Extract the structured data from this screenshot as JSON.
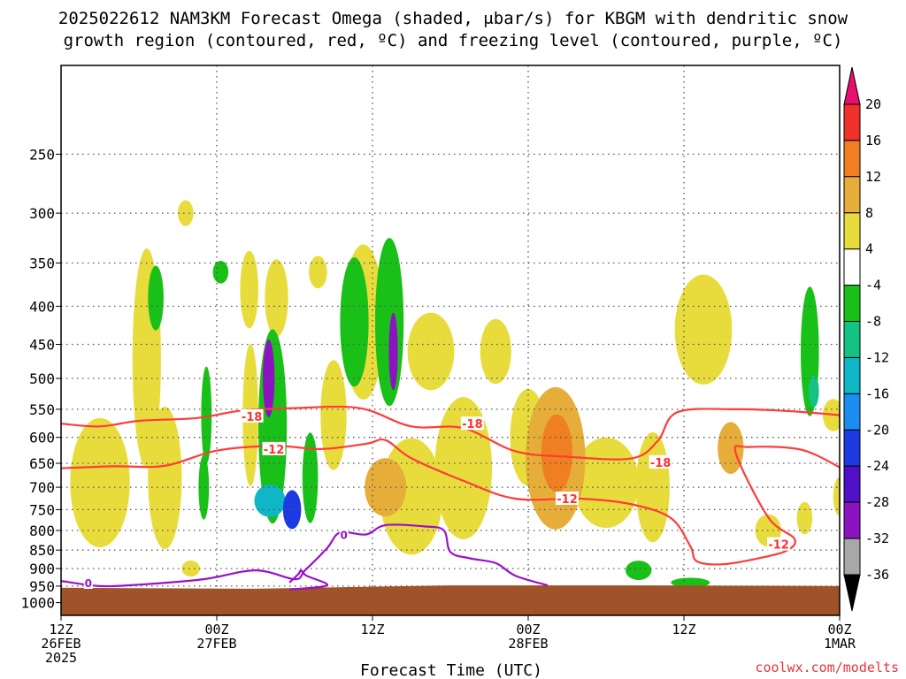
{
  "chart_data": {
    "type": "heatmap",
    "title_lines": [
      "2025022612 NAM3KM Forecast Omega (shaded, μbar/s) for KBGM with dendritic snow",
      "growth region (contoured, red, ºC) and freezing level (contoured, purple, ºC)"
    ],
    "xlabel": "Forecast Time (UTC)",
    "ylabel": "",
    "credit": "coolwx.com/modelts",
    "y_axis": {
      "scale": "log",
      "reversed": true,
      "ylim": [
        1040,
        190
      ],
      "ticks": [
        250,
        300,
        350,
        400,
        450,
        500,
        550,
        600,
        650,
        700,
        750,
        800,
        850,
        900,
        950,
        1000
      ]
    },
    "x_axis": {
      "xlim_hours": [
        0,
        60
      ],
      "ticks": [
        {
          "h": 0,
          "lines": [
            "12Z",
            "26FEB",
            "2025"
          ]
        },
        {
          "h": 12,
          "lines": [
            "00Z",
            "27FEB"
          ]
        },
        {
          "h": 24,
          "lines": [
            "12Z"
          ]
        },
        {
          "h": 36,
          "lines": [
            "00Z",
            "28FEB"
          ]
        },
        {
          "h": 48,
          "lines": [
            "12Z"
          ]
        },
        {
          "h": 60,
          "lines": [
            "00Z",
            "1MAR"
          ]
        }
      ],
      "grid": true
    },
    "colorbar": {
      "ticks": [
        20,
        16,
        12,
        8,
        4,
        -4,
        -8,
        -12,
        -16,
        -20,
        -24,
        -28,
        -32,
        -36
      ],
      "bins": [
        {
          "range": [
            16,
            20
          ],
          "color": "#f0302a"
        },
        {
          "range": [
            12,
            16
          ],
          "color": "#ef7f20"
        },
        {
          "range": [
            8,
            12
          ],
          "color": "#e6ae38"
        },
        {
          "range": [
            4,
            8
          ],
          "color": "#e8dc3c"
        },
        {
          "range": [
            -4,
            4
          ],
          "color": "#ffffff"
        },
        {
          "range": [
            -8,
            -4
          ],
          "color": "#18c018"
        },
        {
          "range": [
            -12,
            -8
          ],
          "color": "#14c283"
        },
        {
          "range": [
            -16,
            -12
          ],
          "color": "#0eb6c6"
        },
        {
          "range": [
            -20,
            -16
          ],
          "color": "#1c8ef2"
        },
        {
          "range": [
            -24,
            -20
          ],
          "color": "#1c3ae0"
        },
        {
          "range": [
            -28,
            -24
          ],
          "color": "#5010c8"
        },
        {
          "range": [
            -32,
            -28
          ],
          "color": "#8c12c2"
        },
        {
          "range": [
            -36,
            -32
          ],
          "color": "#a8a8a8"
        }
      ],
      "top_arrow_color": "#e8106c",
      "bottom_arrow_color": "#000000"
    },
    "ground_color": "#a05228",
    "omega_features": [
      {
        "t": 3.0,
        "p": 690,
        "dt": 2.3,
        "logw": 0.2,
        "v": 5
      },
      {
        "t": 6.6,
        "p": 470,
        "dt": 1.1,
        "logw": 0.34,
        "v": 5
      },
      {
        "t": 8.0,
        "p": 680,
        "dt": 1.3,
        "logw": 0.22,
        "v": 5
      },
      {
        "t": 7.3,
        "p": 390,
        "dt": 0.6,
        "logw": 0.1,
        "v": -7
      },
      {
        "t": 9.6,
        "p": 300,
        "dt": 0.6,
        "logw": 0.04,
        "v": 5
      },
      {
        "t": 10.0,
        "p": 900,
        "dt": 0.7,
        "logw": 0.025,
        "v": 5
      },
      {
        "t": 11.2,
        "p": 560,
        "dt": 0.4,
        "logw": 0.15,
        "v": -7
      },
      {
        "t": 11.0,
        "p": 700,
        "dt": 0.4,
        "logw": 0.1,
        "v": -7
      },
      {
        "t": 12.3,
        "p": 360,
        "dt": 0.6,
        "logw": 0.035,
        "v": -7
      },
      {
        "t": 14.5,
        "p": 380,
        "dt": 0.7,
        "logw": 0.12,
        "v": 5
      },
      {
        "t": 14.6,
        "p": 560,
        "dt": 0.6,
        "logw": 0.22,
        "v": 5
      },
      {
        "t": 16.6,
        "p": 390,
        "dt": 0.9,
        "logw": 0.12,
        "v": 5
      },
      {
        "t": 16.3,
        "p": 580,
        "dt": 1.1,
        "logw": 0.3,
        "v": -8
      },
      {
        "t": 16.0,
        "p": 500,
        "dt": 0.45,
        "logw": 0.12,
        "v": -30
      },
      {
        "t": 16.1,
        "p": 730,
        "dt": 1.2,
        "logw": 0.05,
        "v": -14
      },
      {
        "t": 17.8,
        "p": 750,
        "dt": 0.7,
        "logw": 0.06,
        "v": -24
      },
      {
        "t": 19.2,
        "p": 680,
        "dt": 0.6,
        "logw": 0.14,
        "v": -7
      },
      {
        "t": 19.8,
        "p": 360,
        "dt": 0.7,
        "logw": 0.05,
        "v": 5
      },
      {
        "t": 21.0,
        "p": 560,
        "dt": 1.0,
        "logw": 0.17,
        "v": 5
      },
      {
        "t": 22.6,
        "p": 420,
        "dt": 1.1,
        "logw": 0.2,
        "v": -8
      },
      {
        "t": 23.3,
        "p": 420,
        "dt": 1.6,
        "logw": 0.24,
        "v": 5
      },
      {
        "t": 25.3,
        "p": 420,
        "dt": 1.1,
        "logw": 0.26,
        "v": -8
      },
      {
        "t": 25.6,
        "p": 460,
        "dt": 0.35,
        "logw": 0.12,
        "v": -30
      },
      {
        "t": 25.0,
        "p": 700,
        "dt": 1.6,
        "logw": 0.09,
        "v": 9
      },
      {
        "t": 27.0,
        "p": 720,
        "dt": 2.4,
        "logw": 0.18,
        "v": 5
      },
      {
        "t": 28.5,
        "p": 460,
        "dt": 1.8,
        "logw": 0.12,
        "v": 5
      },
      {
        "t": 31.0,
        "p": 660,
        "dt": 2.2,
        "logw": 0.22,
        "v": 5
      },
      {
        "t": 33.5,
        "p": 460,
        "dt": 1.2,
        "logw": 0.1,
        "v": 5
      },
      {
        "t": 36.0,
        "p": 600,
        "dt": 1.4,
        "logw": 0.15,
        "v": 5
      },
      {
        "t": 38.1,
        "p": 640,
        "dt": 2.3,
        "logw": 0.22,
        "v": 8
      },
      {
        "t": 38.2,
        "p": 630,
        "dt": 1.2,
        "logw": 0.12,
        "v": 12
      },
      {
        "t": 42.0,
        "p": 690,
        "dt": 2.5,
        "logw": 0.14,
        "v": 5
      },
      {
        "t": 45.6,
        "p": 700,
        "dt": 1.3,
        "logw": 0.17,
        "v": 5
      },
      {
        "t": 49.5,
        "p": 430,
        "dt": 2.2,
        "logw": 0.17,
        "v": 5
      },
      {
        "t": 51.6,
        "p": 620,
        "dt": 1.0,
        "logw": 0.08,
        "v": 9
      },
      {
        "t": 54.5,
        "p": 800,
        "dt": 1.0,
        "logw": 0.05,
        "v": 5
      },
      {
        "t": 57.7,
        "p": 460,
        "dt": 0.7,
        "logw": 0.2,
        "v": -7
      },
      {
        "t": 58.0,
        "p": 520,
        "dt": 0.4,
        "logw": 0.05,
        "v": -12
      },
      {
        "t": 59.5,
        "p": 560,
        "dt": 0.8,
        "logw": 0.05,
        "v": 5
      },
      {
        "t": 44.5,
        "p": 905,
        "dt": 1.0,
        "logw": 0.03,
        "v": -6
      },
      {
        "t": 48.5,
        "p": 940,
        "dt": 1.5,
        "logw": 0.015,
        "v": -6
      },
      {
        "t": 57.3,
        "p": 770,
        "dt": 0.6,
        "logw": 0.05,
        "v": 5
      },
      {
        "t": 60.0,
        "p": 720,
        "dt": 0.5,
        "logw": 0.06,
        "v": 5
      }
    ],
    "ground_pressure": [
      {
        "t": 0,
        "p": 955
      },
      {
        "t": 15,
        "p": 958
      },
      {
        "t": 30,
        "p": 948
      },
      {
        "t": 45,
        "p": 948
      },
      {
        "t": 60,
        "p": 950
      }
    ],
    "isotherm_minus18": [
      {
        "t": 0.0,
        "p": 575
      },
      {
        "t": 3.0,
        "p": 580
      },
      {
        "t": 6.0,
        "p": 570
      },
      {
        "t": 10.5,
        "p": 565
      },
      {
        "t": 14.0,
        "p": 552
      },
      {
        "t": 18.0,
        "p": 548
      },
      {
        "t": 23.0,
        "p": 548
      },
      {
        "t": 27.0,
        "p": 580
      },
      {
        "t": 31.0,
        "p": 583
      },
      {
        "t": 35.0,
        "p": 626
      },
      {
        "t": 39.0,
        "p": 637
      },
      {
        "t": 44.0,
        "p": 640
      },
      {
        "t": 46.0,
        "p": 606
      },
      {
        "t": 47.5,
        "p": 555
      },
      {
        "t": 52.0,
        "p": 550
      },
      {
        "t": 56.0,
        "p": 553
      },
      {
        "t": 60.0,
        "p": 560
      }
    ],
    "isotherm_minus12": [
      {
        "t": 0.0,
        "p": 660
      },
      {
        "t": 4.0,
        "p": 656
      },
      {
        "t": 8.0,
        "p": 655
      },
      {
        "t": 12.0,
        "p": 625
      },
      {
        "t": 16.5,
        "p": 616
      },
      {
        "t": 20.0,
        "p": 622
      },
      {
        "t": 23.5,
        "p": 612
      },
      {
        "t": 25.0,
        "p": 605
      },
      {
        "t": 27.0,
        "p": 640
      },
      {
        "t": 31.0,
        "p": 686
      },
      {
        "t": 35.0,
        "p": 725
      },
      {
        "t": 40.0,
        "p": 725
      },
      {
        "t": 44.0,
        "p": 738
      },
      {
        "t": 47.0,
        "p": 770
      },
      {
        "t": 48.5,
        "p": 840
      },
      {
        "t": 49.0,
        "p": 880
      },
      {
        "t": 51.0,
        "p": 888
      },
      {
        "t": 54.0,
        "p": 870
      },
      {
        "t": 56.0,
        "p": 850
      },
      {
        "t": 56.5,
        "p": 820
      },
      {
        "t": 54.5,
        "p": 768
      },
      {
        "t": 52.0,
        "p": 630
      },
      {
        "t": 53.0,
        "p": 618
      },
      {
        "t": 57.0,
        "p": 623
      },
      {
        "t": 60.0,
        "p": 658
      }
    ],
    "freezing_level_0": [
      {
        "t": 0.0,
        "p": 935
      },
      {
        "t": 3.0,
        "p": 950
      },
      {
        "t": 6.0,
        "p": 946
      },
      {
        "t": 11.0,
        "p": 930
      },
      {
        "t": 15.0,
        "p": 905
      },
      {
        "t": 18.0,
        "p": 930
      },
      {
        "t": 18.8,
        "p": 905
      },
      {
        "t": 20.5,
        "p": 845
      },
      {
        "t": 21.5,
        "p": 805
      },
      {
        "t": 23.5,
        "p": 810
      },
      {
        "t": 25.0,
        "p": 787
      },
      {
        "t": 28.0,
        "p": 790
      },
      {
        "t": 29.5,
        "p": 800
      },
      {
        "t": 30.0,
        "p": 855
      },
      {
        "t": 31.5,
        "p": 872
      },
      {
        "t": 33.5,
        "p": 885
      },
      {
        "t": 35.0,
        "p": 920
      },
      {
        "t": 37.5,
        "p": 948
      }
    ],
    "freezing_level_0_secondary": [
      {
        "t": 17.6,
        "p": 940
      },
      {
        "t": 18.3,
        "p": 915
      },
      {
        "t": 18.5,
        "p": 905
      },
      {
        "t": 18.9,
        "p": 920
      },
      {
        "t": 20.5,
        "p": 948
      },
      {
        "t": 17.6,
        "p": 960
      }
    ],
    "contour_labels": [
      {
        "text": "-18",
        "t": 14.7,
        "p": 562,
        "color": "red"
      },
      {
        "text": "-12",
        "t": 16.4,
        "p": 622,
        "color": "red"
      },
      {
        "text": "-18",
        "t": 31.7,
        "p": 575,
        "color": "red"
      },
      {
        "text": "-18",
        "t": 46.2,
        "p": 648,
        "color": "red"
      },
      {
        "text": "-12",
        "t": 39.0,
        "p": 725,
        "color": "red"
      },
      {
        "text": "-12",
        "t": 55.3,
        "p": 835,
        "color": "red"
      },
      {
        "text": "0",
        "t": 2.1,
        "p": 940,
        "color": "purple"
      },
      {
        "text": "0",
        "t": 21.8,
        "p": 810,
        "color": "purple"
      }
    ]
  }
}
